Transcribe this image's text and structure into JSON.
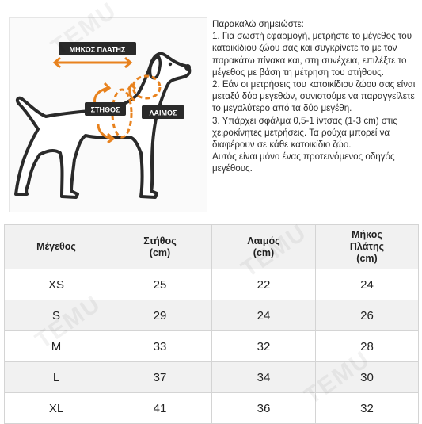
{
  "watermark": "TEMU",
  "illustration": {
    "back_length_label": "ΜΗΚΟΣ ΠΛΑΤΗΣ",
    "chest_label": "ΣΤΗΘΟΣ",
    "neck_label": "ΛΑΙΜΟΣ",
    "accent_color": "#e8821e",
    "label_bg": "#2a2a2a"
  },
  "notes": {
    "heading": "Παρακαλώ σημειώστε:",
    "items": [
      "1. Για σωστή εφαρμογή, μετρήστε το μέγεθος του κατοικίδιου ζώου σας και συγκρίνετε το με τον παρακάτω πίνακα και, στη συνέχεια, επιλέξτε το μέγεθος με βάση τη μέτρηση του στήθους.",
      "2. Εάν οι μετρήσεις του κατοικίδιου ζώου σας είναι μεταξύ δύο μεγεθών, συνιστούμε να παραγγείλετε το μεγαλύτερο από τα δύο μεγέθη.",
      "3. Υπάρχει σφάλμα 0,5-1 ίντσας (1-3 cm) στις χειροκίνητες μετρήσεις. Τα ρούχα μπορεί να διαφέρουν σε κάθε κατοικίδιο ζώο.",
      "Αυτός είναι μόνο ένας προτεινόμενος οδηγός μεγέθους."
    ]
  },
  "table": {
    "headers": {
      "size": "Μέγεθος",
      "chest": "Στήθος",
      "chest_unit": "(cm)",
      "neck": "Λαιμός",
      "neck_unit": "(cm)",
      "back_a": "Μήκος",
      "back_b": "Πλάτης",
      "back_unit": "(cm)"
    },
    "rows": [
      {
        "size": "XS",
        "chest": "25",
        "neck": "22",
        "back": "24"
      },
      {
        "size": "S",
        "chest": "29",
        "neck": "24",
        "back": "26"
      },
      {
        "size": "M",
        "chest": "33",
        "neck": "32",
        "back": "28"
      },
      {
        "size": "L",
        "chest": "37",
        "neck": "34",
        "back": "30"
      },
      {
        "size": "XL",
        "chest": "41",
        "neck": "36",
        "back": "32"
      }
    ]
  }
}
